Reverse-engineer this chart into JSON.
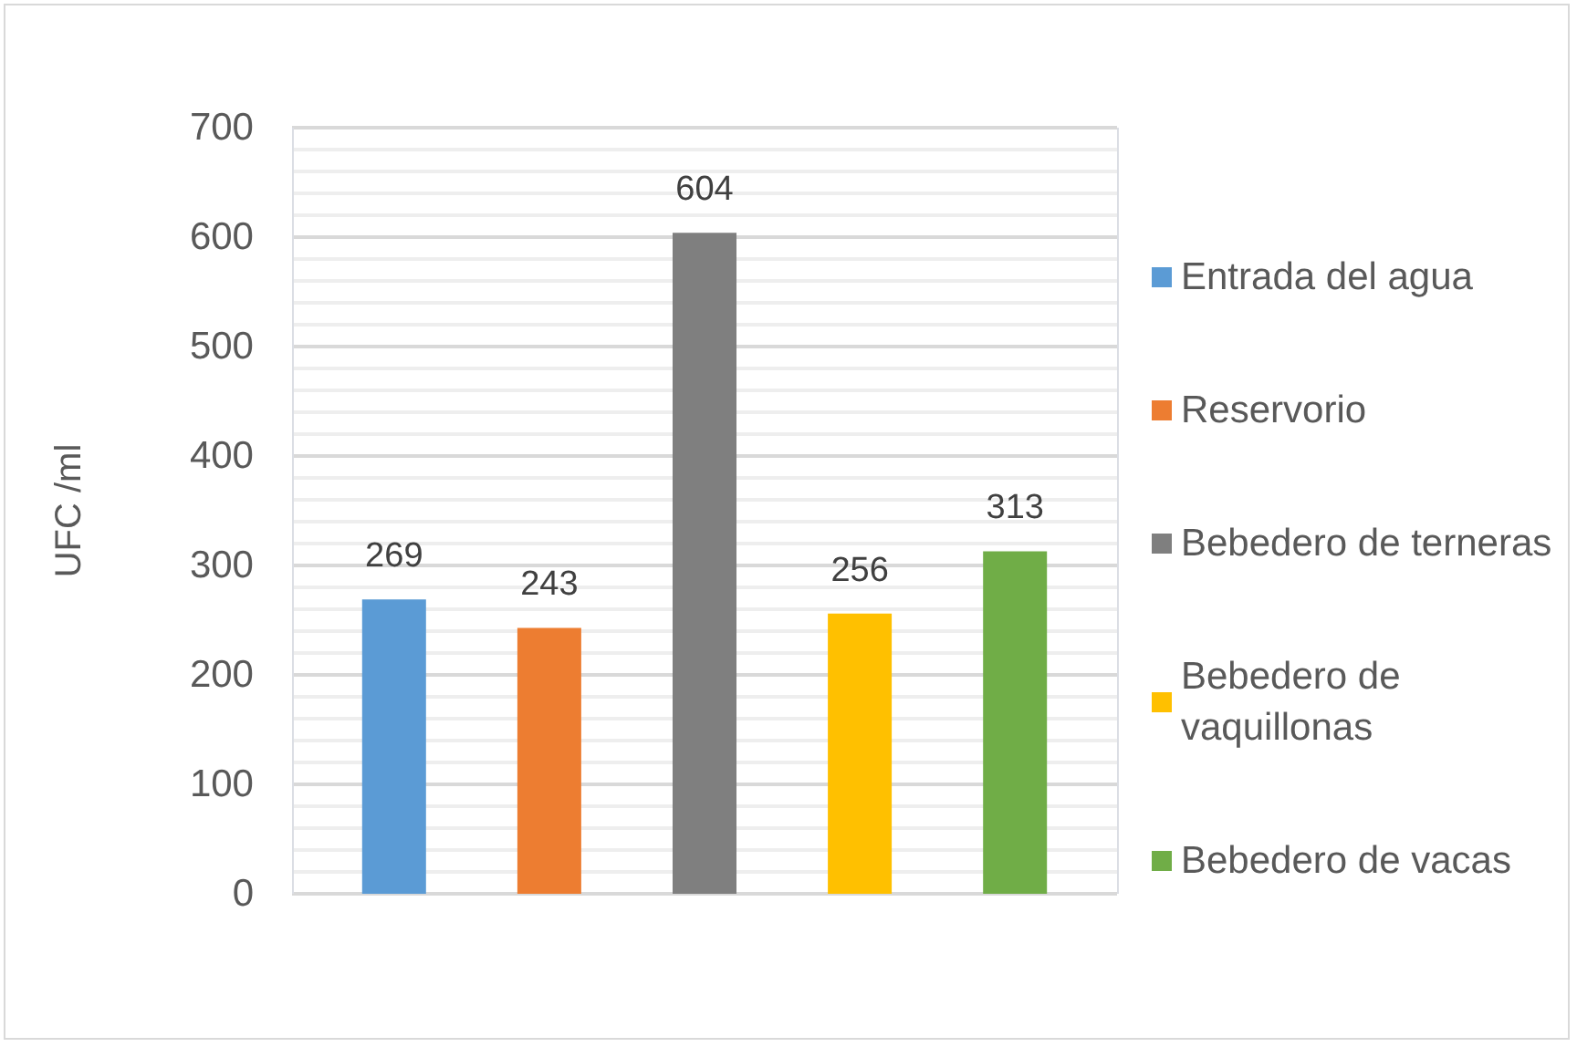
{
  "chart_data": {
    "type": "bar",
    "ylabel": "UFC /ml",
    "categories": [
      null
    ],
    "series": [
      {
        "name": "Entrada del agua",
        "color": "#5b9bd5",
        "values": [
          269
        ]
      },
      {
        "name": "Reservorio",
        "color": "#ed7d31",
        "values": [
          243
        ]
      },
      {
        "name": "Bebedero de terneras",
        "color": "#7f7f7f",
        "values": [
          604
        ]
      },
      {
        "name": "Bebedero de vaquillonas",
        "color": "#ffc000",
        "values": [
          256
        ]
      },
      {
        "name": "Bebedero de vacas",
        "color": "#70ad47",
        "values": [
          313
        ]
      }
    ],
    "ylim": [
      0,
      700
    ],
    "yticks": [
      0,
      100,
      200,
      300,
      400,
      500,
      600,
      700
    ],
    "grid": true,
    "legend": "right",
    "data_labels": true,
    "tick_labels": "y"
  }
}
